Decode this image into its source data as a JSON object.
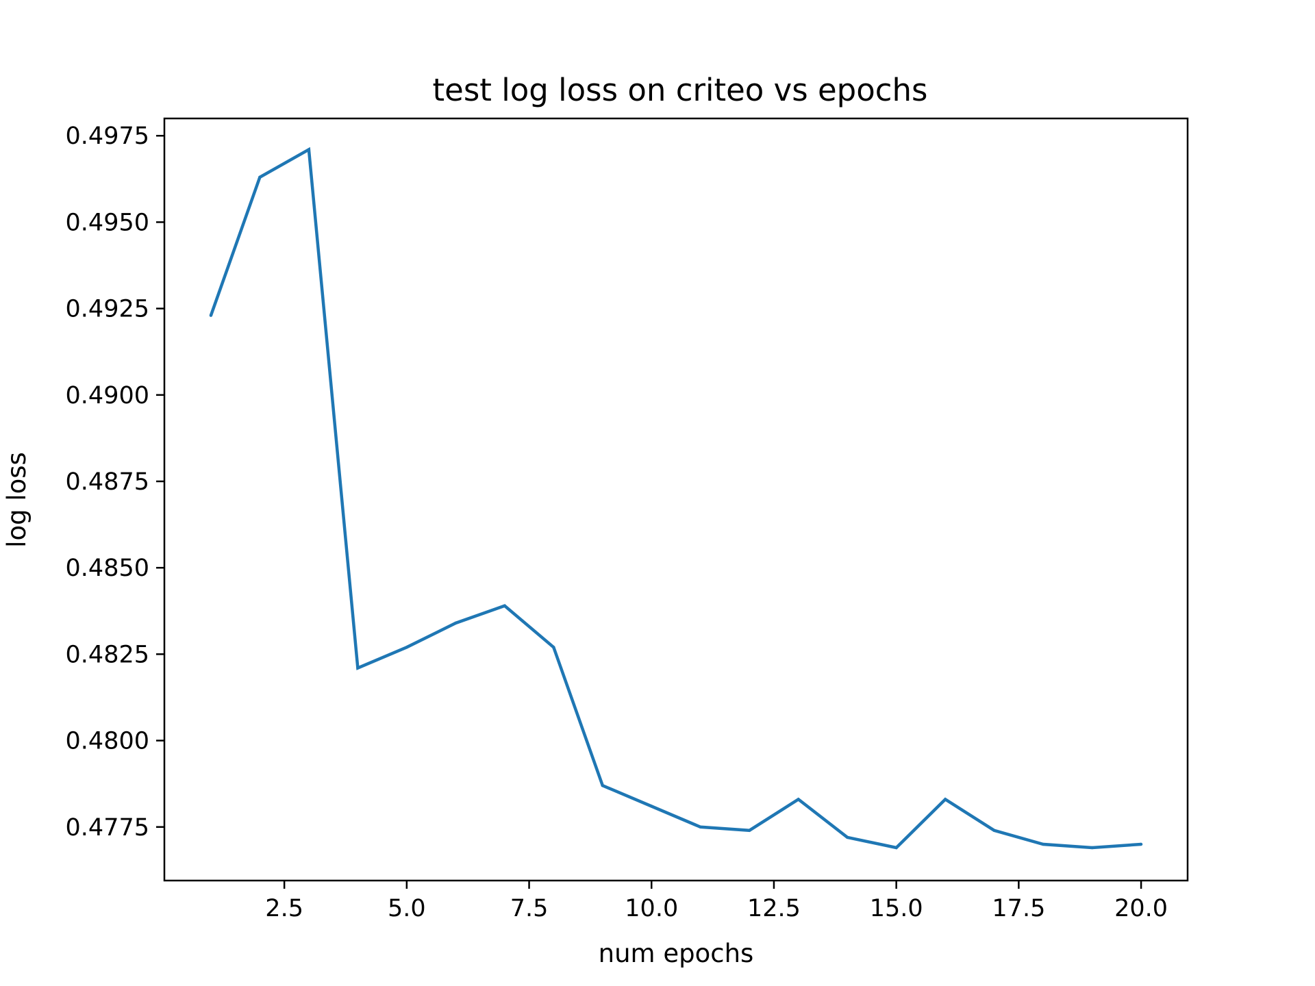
{
  "chart_data": {
    "type": "line",
    "title": "test log loss on criteo vs epochs",
    "xlabel": "num epochs",
    "ylabel": "log loss",
    "xlim": [
      0.05,
      20.95
    ],
    "ylim": [
      0.47595,
      0.498
    ],
    "x_ticks": [
      2.5,
      5.0,
      7.5,
      10.0,
      12.5,
      15.0,
      17.5,
      20.0
    ],
    "x_tick_labels": [
      "2.5",
      "5.0",
      "7.5",
      "10.0",
      "12.5",
      "15.0",
      "17.5",
      "20.0"
    ],
    "y_ticks": [
      0.4775,
      0.48,
      0.4825,
      0.485,
      0.4875,
      0.49,
      0.4925,
      0.495,
      0.4975
    ],
    "y_tick_labels": [
      "0.4775",
      "0.4800",
      "0.4825",
      "0.4850",
      "0.4875",
      "0.4900",
      "0.4925",
      "0.4950",
      "0.4975"
    ],
    "grid": false,
    "line_color": "#1f77b4",
    "series": [
      {
        "x": [
          1,
          2,
          3,
          4,
          5,
          6,
          7,
          8,
          9,
          10,
          11,
          12,
          13,
          14,
          15,
          16,
          17,
          18,
          19,
          20
        ],
        "values": [
          0.4923,
          0.4963,
          0.4971,
          0.4821,
          0.4827,
          0.4834,
          0.4839,
          0.4827,
          0.4787,
          0.4781,
          0.4775,
          0.4774,
          0.4783,
          0.4772,
          0.4769,
          0.4783,
          0.4774,
          0.477,
          0.4769,
          0.477
        ]
      }
    ]
  }
}
